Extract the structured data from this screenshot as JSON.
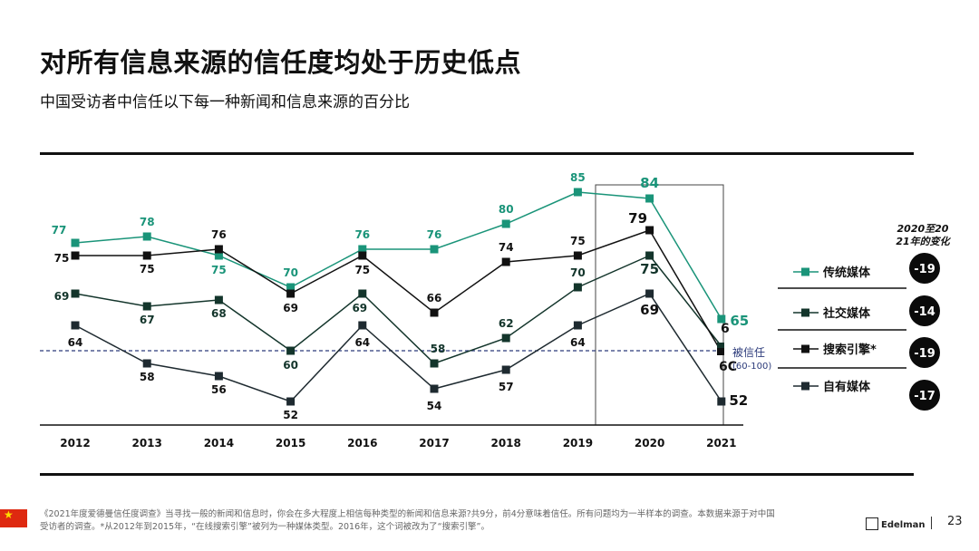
{
  "header": {
    "title": "对所有信息来源的信任度均处于历史低点",
    "subtitle": "中国受访者中信任以下每一种新闻和信息来源的百分比"
  },
  "chart_data": {
    "type": "line",
    "categories": [
      "2012",
      "2013",
      "2014",
      "2015",
      "2016",
      "2017",
      "2018",
      "2019",
      "2020",
      "2021"
    ],
    "ylim": [
      45,
      90
    ],
    "series": [
      {
        "name": "传统媒体",
        "color": "#1a9479",
        "values": [
          77,
          78,
          75,
          70,
          76,
          76,
          80,
          85,
          84,
          65
        ]
      },
      {
        "name": "社交媒体",
        "color": "#13352b",
        "values": [
          69,
          67,
          68,
          60,
          69,
          58,
          62,
          70,
          75,
          null
        ]
      },
      {
        "name": "搜索引擎*",
        "color": "#111111",
        "values": [
          75,
          75,
          76,
          69,
          75,
          66,
          74,
          75,
          79,
          null
        ]
      },
      {
        "name": "自有媒体",
        "color": "#1e2a30",
        "values": [
          64,
          58,
          56,
          52,
          64,
          54,
          57,
          64,
          69,
          52
        ]
      }
    ],
    "trust_line": {
      "value": 60,
      "label": "被信任",
      "range": "(60-100)"
    },
    "change_header": "2020至2021年的变化",
    "changes": [
      "-19",
      "-14",
      "-19",
      "-17"
    ],
    "label_2021_partial": [
      "6C",
      "6"
    ]
  },
  "footer": {
    "note_line1": "《2021年度爱德曼信任度调查》当寻找一般的新闻和信息时，你会在多大程度上相信每种类型的新闻和信息来源?共9分，前4分意味着信任。所有问题均为一半样本的调查。本数据来源于对中国",
    "note_line2": "受访者的调查。*从2012年到2015年，“在线搜索引擎”被列为一种媒体类型。2016年，这个词被改为了“搜索引擎”。",
    "brand": "Edelman",
    "page_number": "23"
  }
}
